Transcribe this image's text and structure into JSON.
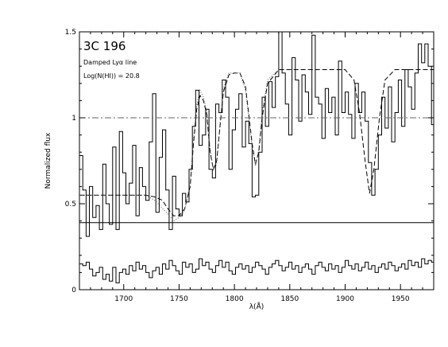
{
  "chart_data": {
    "type": "line",
    "title": "",
    "xlabel": "λ(Å)",
    "ylabel": "Normalized flux",
    "xlim": [
      1660,
      1980
    ],
    "ylim": [
      0,
      1.5
    ],
    "x_ticks": [
      1700,
      1750,
      1800,
      1850,
      1900,
      1950
    ],
    "x_tick_labels": [
      "1700",
      "1750",
      "1800",
      "1850",
      "1900",
      "1950"
    ],
    "y_ticks": [
      0,
      0.5,
      1,
      1.5
    ],
    "y_tick_labels": [
      "0",
      "0.5",
      "1",
      "1.5"
    ],
    "grid": false,
    "annotations": {
      "title": "3C 196",
      "line1": "Damped Lyα line",
      "line2": "Log(N(HI)) = 20.8"
    },
    "reference_lines": [
      {
        "y": 1.0,
        "style": "dash-dot"
      },
      {
        "y": 0.39,
        "style": "solid"
      }
    ],
    "series": [
      {
        "style": "histogram",
        "x": [
          1660,
          1663,
          1666,
          1669,
          1672,
          1675,
          1678,
          1681,
          1684,
          1687,
          1690,
          1693,
          1696,
          1699,
          1702,
          1705,
          1708,
          1711,
          1714,
          1717,
          1720,
          1723,
          1726,
          1729,
          1732,
          1735,
          1738,
          1741,
          1744,
          1747,
          1750,
          1753,
          1756,
          1759,
          1762,
          1765,
          1768,
          1771,
          1774,
          1777,
          1780,
          1783,
          1786,
          1789,
          1792,
          1795,
          1798,
          1801,
          1804,
          1807,
          1810,
          1813,
          1816,
          1819,
          1822,
          1825,
          1828,
          1831,
          1834,
          1837,
          1840,
          1843,
          1846,
          1849,
          1852,
          1855,
          1858,
          1861,
          1864,
          1867,
          1870,
          1873,
          1876,
          1879,
          1882,
          1885,
          1888,
          1891,
          1894,
          1897,
          1900,
          1903,
          1906,
          1909,
          1912,
          1915,
          1918,
          1921,
          1924,
          1927,
          1930,
          1933,
          1936,
          1939,
          1942,
          1945,
          1948,
          1951,
          1954,
          1957,
          1960,
          1963,
          1966,
          1969,
          1972,
          1975,
          1978
        ],
        "values": [
          0.78,
          0.58,
          0.31,
          0.6,
          0.42,
          0.49,
          0.35,
          0.73,
          0.5,
          0.38,
          0.83,
          0.35,
          0.92,
          0.68,
          0.5,
          0.62,
          0.84,
          0.43,
          0.71,
          0.6,
          0.52,
          0.86,
          1.14,
          0.45,
          0.77,
          0.93,
          0.58,
          0.35,
          0.66,
          0.47,
          0.43,
          0.56,
          0.51,
          0.7,
          0.95,
          1.16,
          0.84,
          0.9,
          1.05,
          0.7,
          0.65,
          1.08,
          1.03,
          1.22,
          1.12,
          0.7,
          0.93,
          1.05,
          1.14,
          0.83,
          0.98,
          0.85,
          0.54,
          0.55,
          0.8,
          1.12,
          0.95,
          1.21,
          1.06,
          1.24,
          1.63,
          1.26,
          1.08,
          0.9,
          1.35,
          1.22,
          0.98,
          1.25,
          1.15,
          1.02,
          1.48,
          1.12,
          1.08,
          0.88,
          1.17,
          1.03,
          1.12,
          0.9,
          1.33,
          1.03,
          1.15,
          1.02,
          0.88,
          1.2,
          1.03,
          1.15,
          0.98,
          0.74,
          0.55,
          0.7,
          0.9,
          1.12,
          0.94,
          1.18,
          0.86,
          1.03,
          1.22,
          0.95,
          1.28,
          1.18,
          1.05,
          1.26,
          1.43,
          1.32,
          1.43,
          1.3,
          0.96
        ]
      },
      {
        "style": "histogram",
        "x": [
          1660,
          1663,
          1666,
          1669,
          1672,
          1675,
          1678,
          1681,
          1684,
          1687,
          1690,
          1693,
          1696,
          1699,
          1702,
          1705,
          1708,
          1711,
          1714,
          1717,
          1720,
          1723,
          1726,
          1729,
          1732,
          1735,
          1738,
          1741,
          1744,
          1747,
          1750,
          1753,
          1756,
          1759,
          1762,
          1765,
          1768,
          1771,
          1774,
          1777,
          1780,
          1783,
          1786,
          1789,
          1792,
          1795,
          1798,
          1801,
          1804,
          1807,
          1810,
          1813,
          1816,
          1819,
          1822,
          1825,
          1828,
          1831,
          1834,
          1837,
          1840,
          1843,
          1846,
          1849,
          1852,
          1855,
          1858,
          1861,
          1864,
          1867,
          1870,
          1873,
          1876,
          1879,
          1882,
          1885,
          1888,
          1891,
          1894,
          1897,
          1900,
          1903,
          1906,
          1909,
          1912,
          1915,
          1918,
          1921,
          1924,
          1927,
          1930,
          1933,
          1936,
          1939,
          1942,
          1945,
          1948,
          1951,
          1954,
          1957,
          1960,
          1963,
          1966,
          1969,
          1972,
          1975,
          1978
        ],
        "values": [
          0.15,
          0.14,
          0.16,
          0.12,
          0.08,
          0.1,
          0.13,
          0.06,
          0.09,
          0.05,
          0.13,
          0.04,
          0.1,
          0.12,
          0.09,
          0.14,
          0.11,
          0.16,
          0.12,
          0.14,
          0.1,
          0.07,
          0.11,
          0.13,
          0.09,
          0.15,
          0.12,
          0.17,
          0.14,
          0.11,
          0.09,
          0.16,
          0.13,
          0.15,
          0.1,
          0.12,
          0.18,
          0.14,
          0.16,
          0.12,
          0.1,
          0.14,
          0.17,
          0.13,
          0.16,
          0.11,
          0.09,
          0.13,
          0.15,
          0.12,
          0.14,
          0.1,
          0.13,
          0.16,
          0.14,
          0.12,
          0.09,
          0.13,
          0.15,
          0.17,
          0.14,
          0.11,
          0.13,
          0.16,
          0.12,
          0.14,
          0.1,
          0.13,
          0.15,
          0.12,
          0.09,
          0.14,
          0.16,
          0.13,
          0.11,
          0.15,
          0.12,
          0.14,
          0.1,
          0.13,
          0.17,
          0.14,
          0.12,
          0.15,
          0.11,
          0.13,
          0.16,
          0.12,
          0.14,
          0.1,
          0.13,
          0.15,
          0.12,
          0.16,
          0.14,
          0.11,
          0.13,
          0.15,
          0.12,
          0.17,
          0.14,
          0.16,
          0.13,
          0.18,
          0.15,
          0.17,
          0.16
        ]
      },
      {
        "style": "dashed",
        "x": [
          1660,
          1670,
          1680,
          1690,
          1700,
          1710,
          1720,
          1728,
          1735,
          1740,
          1745,
          1750,
          1755,
          1760,
          1763,
          1766,
          1769,
          1772,
          1775,
          1778,
          1781,
          1784,
          1787,
          1790,
          1795,
          1800,
          1805,
          1810,
          1813,
          1816,
          1819,
          1822,
          1825,
          1830,
          1840,
          1860,
          1880,
          1900,
          1908,
          1913,
          1918,
          1922,
          1926,
          1931,
          1936,
          1945,
          1960,
          1980
        ],
        "values": [
          0.55,
          0.55,
          0.55,
          0.55,
          0.55,
          0.55,
          0.55,
          0.54,
          0.52,
          0.47,
          0.43,
          0.43,
          0.47,
          0.6,
          0.85,
          1.05,
          1.13,
          1.1,
          1.02,
          0.8,
          0.7,
          0.75,
          0.95,
          1.15,
          1.25,
          1.26,
          1.26,
          1.18,
          1.02,
          0.85,
          0.73,
          0.8,
          1.0,
          1.2,
          1.28,
          1.28,
          1.28,
          1.28,
          1.22,
          1.03,
          0.75,
          0.56,
          0.7,
          1.0,
          1.22,
          1.28,
          1.28,
          1.28
        ]
      },
      {
        "style": "dotted",
        "x": [
          1660,
          1670,
          1680,
          1690,
          1700,
          1710,
          1720,
          1728,
          1734,
          1740,
          1745,
          1750,
          1755,
          1760,
          1763,
          1766,
          1769,
          1772,
          1775,
          1778,
          1781,
          1784,
          1787,
          1790,
          1795,
          1800,
          1805,
          1810,
          1813,
          1816,
          1819,
          1822,
          1825,
          1830,
          1840
        ],
        "values": [
          0.55,
          0.55,
          0.55,
          0.55,
          0.55,
          0.55,
          0.55,
          0.52,
          0.48,
          0.44,
          0.4,
          0.42,
          0.46,
          0.62,
          0.88,
          1.08,
          1.16,
          1.12,
          1.04,
          0.82,
          0.7,
          0.73,
          0.97,
          1.17,
          1.26,
          1.26,
          1.26,
          1.16,
          1.0,
          0.82,
          0.72,
          0.82,
          1.03,
          1.22,
          1.28
        ]
      }
    ]
  }
}
